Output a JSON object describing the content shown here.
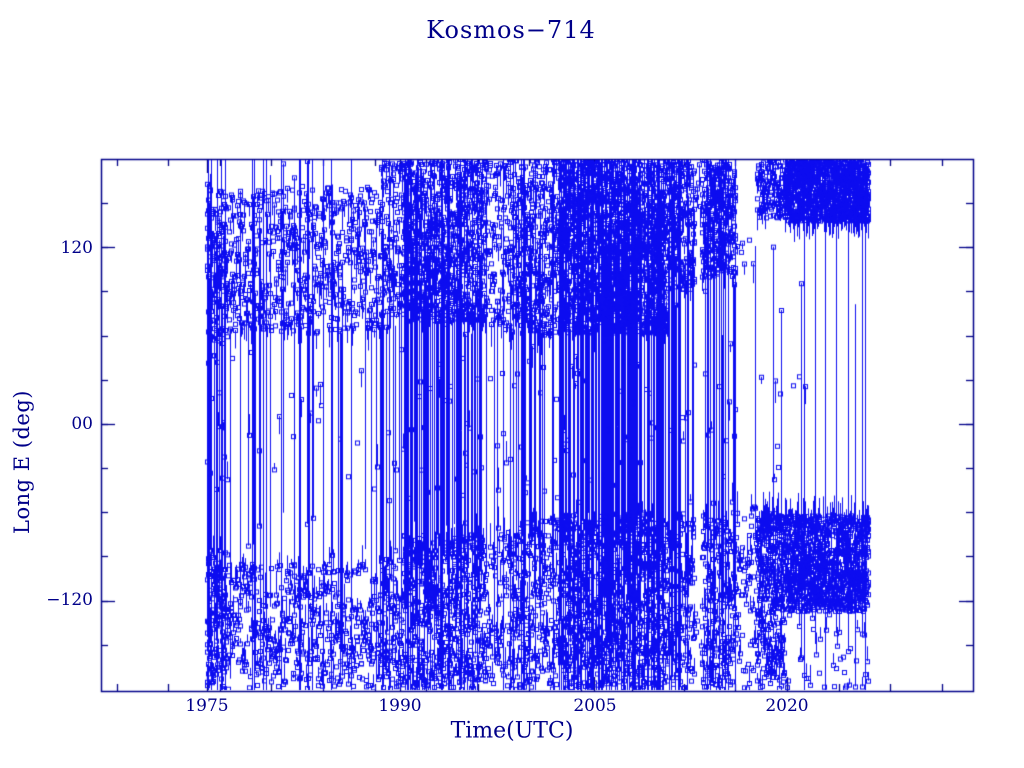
{
  "window": {
    "background": "#ffffff"
  },
  "chart_data": {
    "type": "scatter",
    "title": "Kosmos−714",
    "xlabel": "Time(UTC)",
    "ylabel": "Long E (deg)",
    "xlim": [
      1966.78,
      2034.43
    ],
    "ylim": [
      -181.4,
      180.0
    ],
    "x_major_ticks": [
      1975,
      1990,
      2005,
      2020
    ],
    "x_tick_labels": [
      "1975",
      "1990",
      "2005",
      "2020"
    ],
    "x_minor_ticks": {
      "start": 1968,
      "step": 4,
      "end": 2032
    },
    "y_major_ticks": [
      120,
      0,
      -120
    ],
    "y_tick_labels": [
      "120",
      "00",
      "−120"
    ],
    "y_minor_step": 30,
    "grid": false,
    "legend": "none",
    "marker": "open-square",
    "marker_size": 4,
    "colors": {
      "data": "#0d0df0",
      "axis": "#000089",
      "text": "#000089"
    },
    "data_start": 1975.0,
    "data_end": 2026.3,
    "seed": 42,
    "epochs": [
      {
        "t0": 1975.0,
        "t1": 1976.6,
        "line_p": 0.7,
        "bands": [
          [
            55,
            160,
            6
          ],
          [
            -180,
            -85,
            6
          ],
          [
            -50,
            50,
            0.6
          ]
        ]
      },
      {
        "t0": 1976.6,
        "t1": 1988.5,
        "line_p": 0.2,
        "bands": [
          [
            62,
            162,
            3.5
          ],
          [
            -180,
            -95,
            3
          ],
          [
            -50,
            50,
            0.12
          ]
        ]
      },
      {
        "t0": 1988.5,
        "t1": 1990.2,
        "line_p": 0.4,
        "bands": [
          [
            72,
            180,
            5
          ],
          [
            -180,
            -90,
            4
          ],
          [
            -55,
            55,
            0.25
          ]
        ]
      },
      {
        "t0": 1990.2,
        "t1": 1996.6,
        "line_p": 0.6,
        "bands": [
          [
            70,
            180,
            9
          ],
          [
            -180,
            -75,
            6
          ],
          [
            -55,
            55,
            0.35
          ]
        ]
      },
      {
        "t0": 1996.6,
        "t1": 1998.4,
        "line_p": 0.22,
        "bands": [
          [
            60,
            180,
            4
          ],
          [
            -180,
            -70,
            3
          ],
          [
            -55,
            55,
            0.2
          ]
        ]
      },
      {
        "t0": 1998.4,
        "t1": 2002.4,
        "line_p": 0.45,
        "bands": [
          [
            60,
            180,
            7
          ],
          [
            -180,
            -65,
            5
          ],
          [
            -55,
            55,
            0.3
          ]
        ]
      },
      {
        "t0": 2002.4,
        "t1": 2010.7,
        "line_p": 0.75,
        "bands": [
          [
            62,
            180,
            13
          ],
          [
            -180,
            -60,
            8
          ],
          [
            -55,
            55,
            0.4
          ]
        ]
      },
      {
        "t0": 2010.7,
        "t1": 2012.8,
        "line_p": 0.45,
        "bands": [
          [
            90,
            180,
            7
          ],
          [
            -180,
            -60,
            5
          ],
          [
            -55,
            55,
            0.3
          ]
        ]
      },
      {
        "t0": 2012.8,
        "t1": 2013.4,
        "line_p": 0.06,
        "bands": [
          [
            148,
            180,
            1.2
          ],
          [
            -178,
            -120,
            0.6
          ]
        ]
      },
      {
        "t0": 2013.4,
        "t1": 2016.0,
        "line_p": 0.5,
        "bands": [
          [
            100,
            180,
            8
          ],
          [
            -180,
            -60,
            6
          ],
          [
            -55,
            55,
            0.3
          ]
        ]
      },
      {
        "t0": 2016.0,
        "t1": 2017.6,
        "line_p": 0.07,
        "bands": [
          [
            100,
            128,
            0.35
          ],
          [
            -130,
            -55,
            2.2
          ],
          [
            -180,
            -132,
            0.9
          ]
        ]
      },
      {
        "t0": 2017.6,
        "t1": 2019.8,
        "line_p": 0.12,
        "bands": [
          [
            140,
            180,
            4
          ],
          [
            -128,
            -60,
            9
          ],
          [
            -180,
            -128,
            3.5
          ],
          [
            -50,
            40,
            0.12
          ]
        ]
      },
      {
        "t0": 2019.8,
        "t1": 2026.3,
        "line_p": 0.08,
        "bands": [
          [
            138,
            180,
            11
          ],
          [
            -127,
            -62,
            11
          ],
          [
            -180,
            -129,
            0.5
          ],
          [
            0,
            80,
            0.04
          ]
        ]
      }
    ]
  }
}
